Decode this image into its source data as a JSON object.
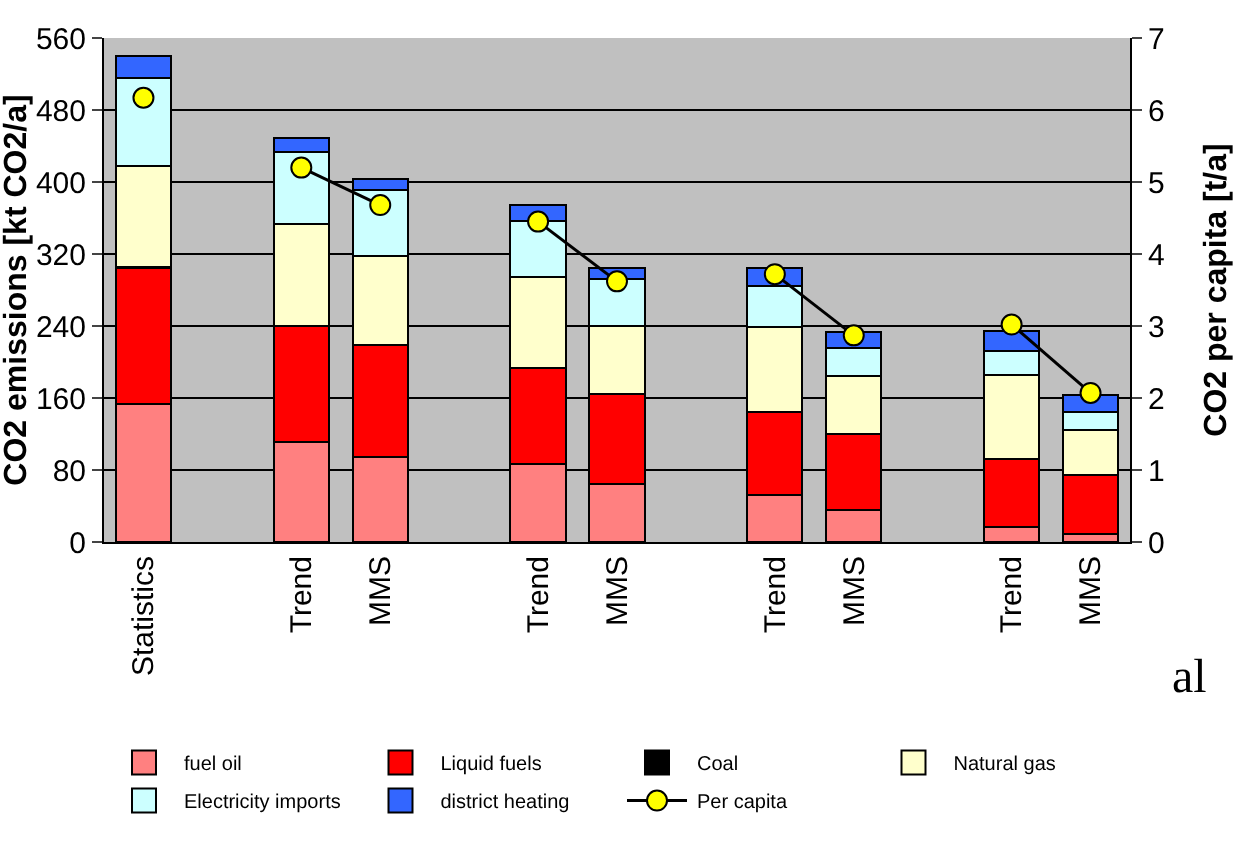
{
  "chart_data": {
    "type": "bar",
    "stacked": true,
    "categories": [
      "Statistics",
      null,
      "Trend",
      "MMS",
      null,
      "Trend",
      "MMS",
      null,
      "Trend",
      "MMS",
      null,
      "Trend",
      "MMS"
    ],
    "ylabel": "CO2 emissions [kt CO2/a]",
    "y2label": "CO2 per capita [t/a]",
    "series": [
      {
        "name": "fuel oil",
        "color": "#ff8080",
        "values": [
          153,
          null,
          111,
          95,
          null,
          87,
          65,
          null,
          52,
          36,
          null,
          17,
          9
        ]
      },
      {
        "name": "Liquid fuels",
        "color": "#ff0000",
        "values": [
          151,
          null,
          129,
          124,
          null,
          106,
          100,
          null,
          92,
          84,
          null,
          75,
          66
        ]
      },
      {
        "name": "Coal",
        "color": "#000000",
        "values": [
          2,
          null,
          0,
          0,
          null,
          0,
          0,
          null,
          0,
          0,
          null,
          0,
          0
        ]
      },
      {
        "name": "Natural gas",
        "color": "#ffffcc",
        "values": [
          112,
          null,
          113,
          99,
          null,
          101,
          75,
          null,
          95,
          64,
          null,
          94,
          50
        ]
      },
      {
        "name": "Electricity imports",
        "color": "#ccffff",
        "values": [
          98,
          null,
          80,
          73,
          null,
          63,
          52,
          null,
          46,
          32,
          null,
          26,
          19
        ]
      },
      {
        "name": "district heating",
        "color": "#3366ff",
        "values": [
          24,
          null,
          16,
          12,
          null,
          17,
          12,
          null,
          20,
          17,
          null,
          23,
          19
        ]
      },
      {
        "name": "Per capita",
        "type": "line",
        "axis": "y2",
        "color": "#000000",
        "marker": "circle",
        "values": [
          6.17,
          null,
          5.2,
          4.68,
          null,
          4.45,
          3.62,
          null,
          3.72,
          2.87,
          null,
          3.02,
          2.07
        ]
      }
    ],
    "ylim": [
      0,
      560
    ],
    "yticks": [
      0,
      80,
      160,
      240,
      320,
      400,
      480,
      560
    ],
    "y2lim": [
      0,
      7
    ],
    "y2ticks": [
      0,
      1,
      2,
      3,
      4,
      5,
      6,
      7
    ],
    "grid": "y",
    "legend": "bottom",
    "annotations": [
      "al"
    ]
  }
}
